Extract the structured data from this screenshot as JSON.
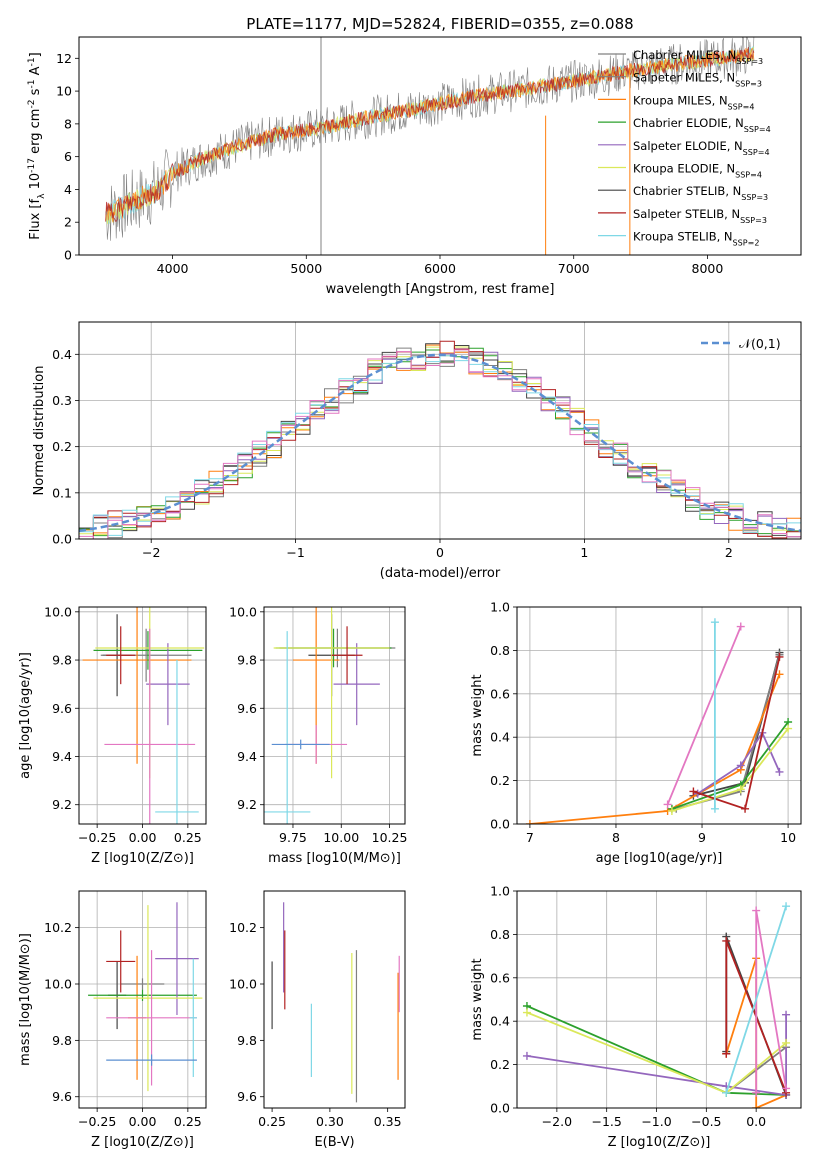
{
  "figure_title": "PLATE=1177, MJD=52824, FIBERID=0355, z=0.088",
  "colors": [
    "#d0d0d0",
    "#d0d0d0",
    "#ff7f0e",
    "#2ca02c",
    "#9467bd",
    "#bcbd22",
    "#444444",
    "#b22222",
    "#17becf"
  ],
  "chart_data": [
    {
      "id": "spectrum",
      "type": "line",
      "title": "PLATE=1177, MJD=52824, FIBERID=0355, z=0.088",
      "xlabel": "wavelength [Angstrom, rest frame]",
      "ylabel": "Flux [f_λ 10^-17 erg cm^-2 s^-1 A^-1]",
      "xlim": [
        3300,
        8700
      ],
      "ylim": [
        0,
        13.3
      ],
      "xticks": [
        4000,
        5000,
        6000,
        7000,
        8000
      ],
      "yticks": [
        0,
        2,
        4,
        6,
        8,
        10,
        12
      ],
      "grid": false,
      "legend_position": "right",
      "legend": [
        {
          "label": "Chabrier MILES, N_SSP=3",
          "color": "#808080"
        },
        {
          "label": "Salpeter MILES, N_SSP=3",
          "color": "#808080"
        },
        {
          "label": "Kroupa MILES, N_SSP=4",
          "color": "#ff7f0e"
        },
        {
          "label": "Chabrier ELODIE, N_SSP=4",
          "color": "#2ca02c"
        },
        {
          "label": "Salpeter ELODIE, N_SSP=4",
          "color": "#9467bd"
        },
        {
          "label": "Kroupa ELODIE, N_SSP=4",
          "color": "#dbe85a"
        },
        {
          "label": "Chabrier STELIB, N_SSP=3",
          "color": "#444444"
        },
        {
          "label": "Salpeter STELIB, N_SSP=3",
          "color": "#b22222"
        },
        {
          "label": "Kroupa STELIB, N_SSP=2",
          "color": "#7fd8e6"
        }
      ],
      "continuum_x": [
        3500,
        3700,
        3900,
        4000,
        4200,
        4500,
        4800,
        5100,
        5400,
        5800,
        6200,
        6600,
        7000,
        7400,
        7800,
        8200,
        8350
      ],
      "continuum_y": [
        2.5,
        3.2,
        4.0,
        5.0,
        5.8,
        6.7,
        7.4,
        7.7,
        8.3,
        8.9,
        9.6,
        10.1,
        10.6,
        11.2,
        11.7,
        12.1,
        12.3
      ],
      "spike_lines": [
        {
          "x": 5110,
          "color": "#808080",
          "y": [
            0,
            13.3
          ]
        },
        {
          "x": 6790,
          "color": "#ff7f0e",
          "y": [
            0,
            8.5
          ]
        },
        {
          "x": 7420,
          "color": "#ff7f0e",
          "y": [
            0,
            11.7
          ]
        }
      ]
    },
    {
      "id": "residuals",
      "type": "bar",
      "xlabel": "(data-model)/error",
      "ylabel": "Normed distribution",
      "xlim": [
        -2.5,
        2.5
      ],
      "ylim": [
        0,
        0.47
      ],
      "xticks": [
        -2,
        -1,
        0,
        1,
        2
      ],
      "yticks": [
        0.0,
        0.1,
        0.2,
        0.3,
        0.4
      ],
      "grid": true,
      "legend": [
        {
          "label": "𝒩(0,1)",
          "color": "#5b8fd1",
          "style": "dashed"
        }
      ],
      "bin_width": 0.1
    },
    {
      "id": "age_vs_Z",
      "type": "scatter",
      "xlabel": "Z [log10(Z/Z⊙)]",
      "ylabel": "age  [log10(age/yr)]",
      "xlim": [
        -0.35,
        0.35
      ],
      "ylim": [
        9.12,
        10.02
      ],
      "xticks": [
        -0.25,
        0.0,
        0.25
      ],
      "yticks": [
        9.2,
        9.4,
        9.6,
        9.8,
        10.0
      ],
      "grid": true,
      "points": [
        {
          "x": -0.14,
          "y": 9.82,
          "xerr": 0.08,
          "yerr": 0.17,
          "color": "#444444"
        },
        {
          "x": 0.02,
          "y": 9.82,
          "xerr": 0.25,
          "yerr": 0.11,
          "color": "#808080"
        },
        {
          "x": -0.03,
          "y": 9.8,
          "xerr": 0.3,
          "yerr": 0.43,
          "color": "#ff7f0e"
        },
        {
          "x": 0.03,
          "y": 9.84,
          "xerr": 0.3,
          "yerr": 0.08,
          "color": "#2ca02c"
        },
        {
          "x": 0.14,
          "y": 9.7,
          "xerr": 0.12,
          "yerr": 0.17,
          "color": "#9467bd"
        },
        {
          "x": 0.04,
          "y": 9.85,
          "xerr": 0.3,
          "yerr": 0.54,
          "color": "#dbe85a"
        },
        {
          "x": -0.12,
          "y": 9.82,
          "xerr": 0.08,
          "yerr": 0.12,
          "color": "#b22222"
        },
        {
          "x": 0.04,
          "y": 9.45,
          "xerr": 0.25,
          "yerr": 0.48,
          "color": "#e377c2"
        },
        {
          "x": 0.19,
          "y": 9.17,
          "xerr": 0.12,
          "yerr": 0.63,
          "color": "#7fd8e6"
        }
      ]
    },
    {
      "id": "age_vs_mass",
      "type": "scatter",
      "xlabel": "mass [log10(M/M⊙)]",
      "ylabel": "",
      "xlim": [
        9.6,
        10.33
      ],
      "ylim": [
        9.12,
        10.02
      ],
      "xticks": [
        9.75,
        10.0,
        10.25
      ],
      "yticks": [
        9.2,
        9.4,
        9.6,
        9.8,
        10.0
      ],
      "grid": true,
      "points": [
        {
          "x": 9.95,
          "y": 9.82,
          "xerr": 0.12,
          "yerr": 0.17,
          "color": "#444444"
        },
        {
          "x": 9.98,
          "y": 9.85,
          "xerr": 0.3,
          "yerr": 0.08,
          "color": "#808080"
        },
        {
          "x": 9.87,
          "y": 9.8,
          "xerr": 0.12,
          "yerr": 0.43,
          "color": "#ff7f0e"
        },
        {
          "x": 9.96,
          "y": 9.85,
          "xerr": 0.3,
          "yerr": 0.08,
          "color": "#2ca02c"
        },
        {
          "x": 10.08,
          "y": 9.7,
          "xerr": 0.12,
          "yerr": 0.17,
          "color": "#9467bd"
        },
        {
          "x": 9.95,
          "y": 9.85,
          "xerr": 0.3,
          "yerr": 0.54,
          "color": "#dbe85a"
        },
        {
          "x": 10.03,
          "y": 9.82,
          "xerr": 0.08,
          "yerr": 0.12,
          "color": "#b22222"
        },
        {
          "x": 9.87,
          "y": 9.45,
          "xerr": 0.16,
          "yerr": 0.08,
          "color": "#e377c2"
        },
        {
          "x": 9.72,
          "y": 9.17,
          "xerr": 0.12,
          "yerr": 0.75,
          "color": "#7fd8e6"
        },
        {
          "x": 9.79,
          "y": 9.45,
          "xerr": 0.15,
          "yerr": 0.02,
          "color": "#5b8fd1"
        }
      ]
    },
    {
      "id": "mw_vs_age",
      "type": "line",
      "xlabel": "age  [log10(age/yr)]",
      "ylabel": "mass weight",
      "xlim": [
        6.85,
        10.15
      ],
      "ylim": [
        0.0,
        1.0
      ],
      "xticks": [
        7,
        8,
        9,
        10
      ],
      "yticks": [
        0.0,
        0.2,
        0.4,
        0.6,
        0.8,
        1.0
      ],
      "grid": true,
      "series": [
        {
          "color": "#444444",
          "x": [
            8.9,
            9.5,
            9.9
          ],
          "y": [
            0.13,
            0.19,
            0.79
          ]
        },
        {
          "color": "#808080",
          "x": [
            8.7,
            9.45,
            9.9
          ],
          "y": [
            0.07,
            0.15,
            0.78
          ]
        },
        {
          "color": "#ff7f0e",
          "x": [
            7.0,
            8.6,
            9.45,
            9.9
          ],
          "y": [
            0.0,
            0.06,
            0.25,
            0.69
          ]
        },
        {
          "color": "#2ca02c",
          "x": [
            8.65,
            9.45,
            10.0
          ],
          "y": [
            0.07,
            0.18,
            0.47
          ]
        },
        {
          "color": "#9467bd",
          "x": [
            8.95,
            9.45,
            9.7,
            9.9
          ],
          "y": [
            0.14,
            0.27,
            0.42,
            0.24
          ]
        },
        {
          "color": "#dbe85a",
          "x": [
            8.65,
            9.45,
            10.0
          ],
          "y": [
            0.06,
            0.16,
            0.44
          ]
        },
        {
          "color": "#b22222",
          "x": [
            8.9,
            9.5,
            9.9
          ],
          "y": [
            0.15,
            0.07,
            0.77
          ]
        },
        {
          "color": "#e377c2",
          "x": [
            8.6,
            9.45
          ],
          "y": [
            0.09,
            0.91
          ]
        },
        {
          "color": "#7fd8e6",
          "x": [
            9.15,
            9.15
          ],
          "y": [
            0.07,
            0.93
          ]
        }
      ]
    },
    {
      "id": "mass_vs_Z",
      "type": "scatter",
      "xlabel": "Z [log10(Z/Z⊙)]",
      "ylabel": "mass [log10(M/M⊙)]",
      "xlim": [
        -0.35,
        0.35
      ],
      "ylim": [
        9.56,
        10.33
      ],
      "xticks": [
        -0.25,
        0.0,
        0.25
      ],
      "yticks": [
        9.6,
        9.8,
        10.0,
        10.2
      ],
      "grid": true,
      "points": [
        {
          "x": -0.14,
          "y": 9.96,
          "xerr": 0.05,
          "yerr": 0.12,
          "color": "#444444"
        },
        {
          "x": 0.0,
          "y": 10.0,
          "xerr": 0.12,
          "yerr": 0.02,
          "color": "#808080"
        },
        {
          "x": -0.03,
          "y": 9.88,
          "xerr": 0.05,
          "yerr": 0.22,
          "color": "#ff7f0e"
        },
        {
          "x": 0.0,
          "y": 9.96,
          "xerr": 0.3,
          "yerr": 0.02,
          "color": "#2ca02c"
        },
        {
          "x": 0.19,
          "y": 10.09,
          "xerr": 0.12,
          "yerr": 0.2,
          "color": "#9467bd"
        },
        {
          "x": 0.03,
          "y": 9.95,
          "xerr": 0.3,
          "yerr": 0.33,
          "color": "#dbe85a"
        },
        {
          "x": -0.12,
          "y": 10.08,
          "xerr": 0.08,
          "yerr": 0.11,
          "color": "#b22222"
        },
        {
          "x": 0.05,
          "y": 9.88,
          "xerr": 0.25,
          "yerr": 0.24,
          "color": "#e377c2"
        },
        {
          "x": 0.28,
          "y": 9.88,
          "xerr": 0.02,
          "yerr": 0.21,
          "color": "#7fd8e6"
        },
        {
          "x": 0.05,
          "y": 9.73,
          "xerr": 0.25,
          "yerr": 0.02,
          "color": "#5b8fd1"
        }
      ]
    },
    {
      "id": "mass_vs_EBV",
      "type": "scatter",
      "xlabel": "E(B-V)",
      "ylabel": "",
      "xlim": [
        0.243,
        0.365
      ],
      "ylim": [
        9.56,
        10.33
      ],
      "xticks": [
        0.25,
        0.3,
        0.35
      ],
      "yticks": [
        9.6,
        9.8,
        10.0,
        10.2
      ],
      "grid": false,
      "points": [
        {
          "x": 0.25,
          "y": 9.96,
          "xerr": 0.0,
          "yerr": 0.12,
          "color": "#444444"
        },
        {
          "x": 0.26,
          "y": 10.13,
          "xerr": 0.0,
          "yerr": 0.16,
          "color": "#9467bd"
        },
        {
          "x": 0.261,
          "y": 10.05,
          "xerr": 0.0,
          "yerr": 0.14,
          "color": "#b22222"
        },
        {
          "x": 0.284,
          "y": 9.8,
          "xerr": 0.0,
          "yerr": 0.13,
          "color": "#7fd8e6"
        },
        {
          "x": 0.319,
          "y": 9.86,
          "xerr": 0.0,
          "yerr": 0.25,
          "color": "#dbe85a"
        },
        {
          "x": 0.323,
          "y": 9.85,
          "xerr": 0.0,
          "yerr": 0.27,
          "color": "#808080"
        },
        {
          "x": 0.359,
          "y": 9.85,
          "xerr": 0.0,
          "yerr": 0.19,
          "color": "#ff7f0e"
        },
        {
          "x": 0.36,
          "y": 10.0,
          "xerr": 0.0,
          "yerr": 0.1,
          "color": "#e377c2"
        }
      ]
    },
    {
      "id": "mw_vs_Z",
      "type": "line",
      "xlabel": "Z [log10(Z/Z⊙)]",
      "ylabel": "mass weight",
      "xlim": [
        -2.4,
        0.45
      ],
      "ylim": [
        0.0,
        1.0
      ],
      "xticks": [
        -2.0,
        -1.5,
        -1.0,
        -0.5,
        0.0
      ],
      "yticks": [
        0.0,
        0.2,
        0.4,
        0.6,
        0.8,
        1.0
      ],
      "grid": true,
      "series": [
        {
          "color": "#444444",
          "x": [
            -0.3,
            -0.3,
            0.3
          ],
          "y": [
            0.26,
            0.79,
            0.06
          ]
        },
        {
          "color": "#808080",
          "x": [
            -0.3,
            0.3
          ],
          "y": [
            0.07,
            0.28
          ]
        },
        {
          "color": "#ff7f0e",
          "x": [
            -0.3,
            0.0,
            0.0,
            0.3
          ],
          "y": [
            0.25,
            0.69,
            0.0,
            0.06
          ]
        },
        {
          "color": "#2ca02c",
          "x": [
            -2.3,
            -0.3,
            0.3
          ],
          "y": [
            0.47,
            0.07,
            0.06
          ]
        },
        {
          "color": "#9467bd",
          "x": [
            -2.3,
            -0.3,
            0.3,
            0.3
          ],
          "y": [
            0.24,
            0.1,
            0.06,
            0.43
          ]
        },
        {
          "color": "#dbe85a",
          "x": [
            -2.3,
            -0.3,
            0.3
          ],
          "y": [
            0.44,
            0.07,
            0.3
          ]
        },
        {
          "color": "#b22222",
          "x": [
            -0.3,
            -0.3,
            0.3
          ],
          "y": [
            0.25,
            0.77,
            0.07
          ]
        },
        {
          "color": "#e377c2",
          "x": [
            0.0,
            0.0,
            0.3
          ],
          "y": [
            0.07,
            0.91,
            0.09
          ]
        },
        {
          "color": "#7fd8e6",
          "x": [
            -0.3,
            0.3
          ],
          "y": [
            0.07,
            0.93
          ]
        }
      ]
    }
  ]
}
